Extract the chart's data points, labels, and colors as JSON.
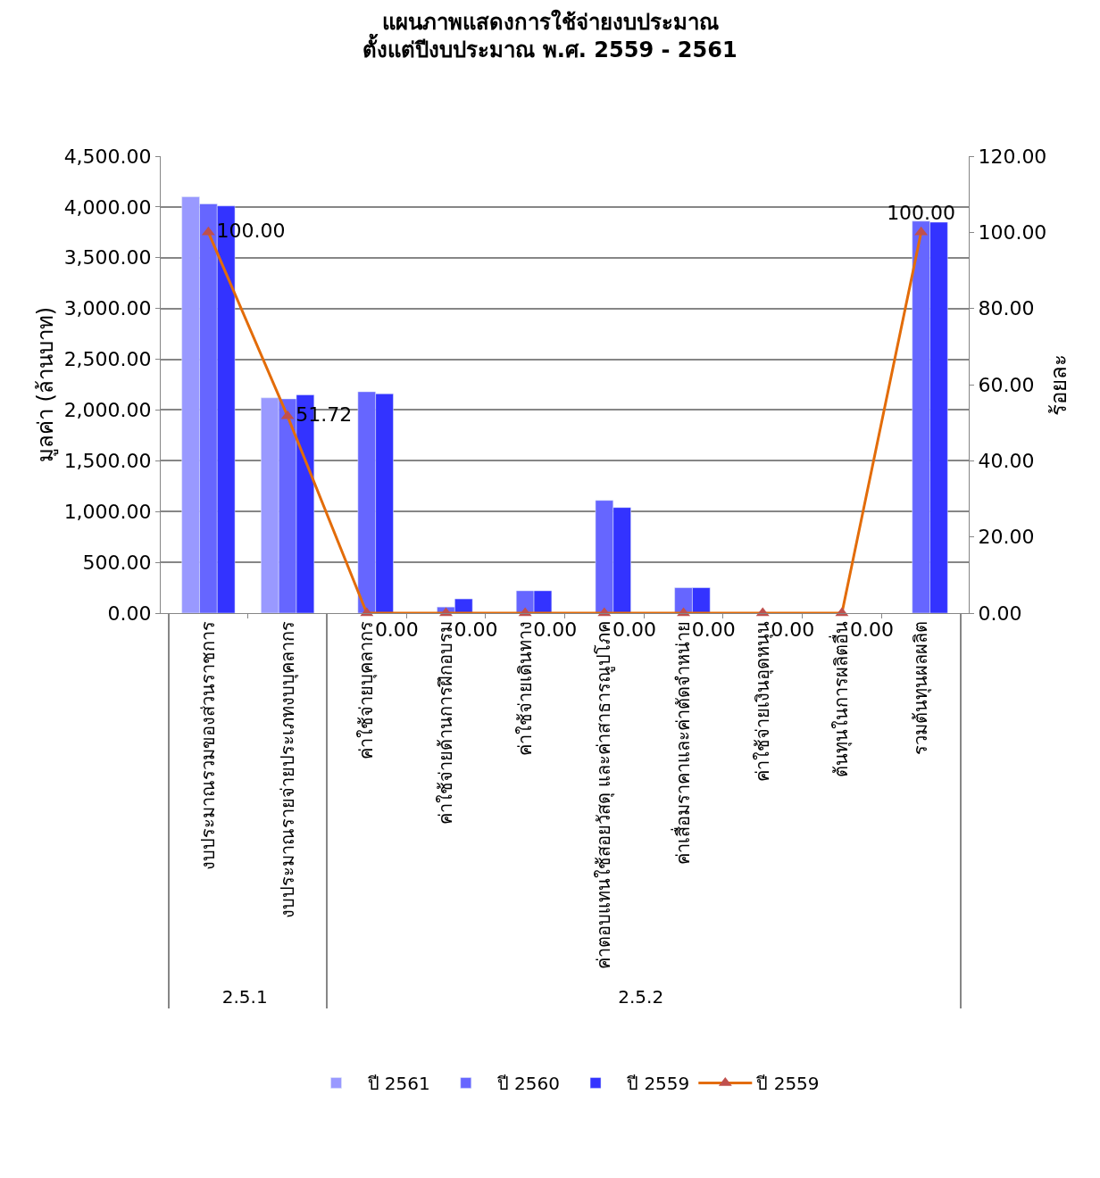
{
  "chart_data": {
    "type": "bar",
    "title": "แผนภาพแสดงการใช้จ่ายงบประมาณ\nตั้งแต่ปีงบประมาณ พ.ศ. 2559 - 2561",
    "ylabel": "มูลค่า (ล้านบาท)",
    "y2label": "ร้อยละ",
    "categories": [
      "งบประมาณรวมของส่วนราชการ",
      "งบประมาณรายจ่ายประเภทงบบุคลากร",
      "ค่าใช้จ่ายบุคลากร",
      "ค่าใช้จ่ายด้านการฝึกอบรม",
      "ค่าใช้จ่ายเดินทาง",
      "ค่าตอบแทนใช้สอยวัสดุ และค่าสาธารณูปโภค",
      "ค่าเสื่อมราคาและค่าตัดจำหน่าย",
      "ค่าใช้จ่ายเงินอุดหนุน",
      "ต้นทุนในการผลิตอื่น",
      "รวมต้นทุนผลผลิต"
    ],
    "annotations": [
      "2.5.1",
      "2.5.2"
    ],
    "series": [
      {
        "name": "ปี 2561",
        "color": "#9999ff",
        "values": [
          4100,
          2120,
          null,
          null,
          null,
          null,
          null,
          null,
          null,
          null
        ]
      },
      {
        "name": "ปี 2560",
        "color": "#6666ff",
        "values": [
          4030,
          2110,
          2180,
          60,
          220,
          1110,
          250,
          null,
          null,
          3860
        ]
      },
      {
        "name": "ปี 2559",
        "color": "#3333ff",
        "values": [
          4010,
          2150,
          2160,
          140,
          220,
          1040,
          250,
          null,
          null,
          3850
        ]
      },
      {
        "name": "ปี 2559",
        "type": "line",
        "axis": "y2",
        "color": "#e36c09",
        "marker": "triangle",
        "values": [
          100,
          51.72,
          0,
          0,
          0,
          0,
          0,
          0,
          0,
          100
        ],
        "value_labels": [
          "100.00",
          "51.72",
          "0.00",
          "0.00",
          "0.00",
          "0.00",
          "0.00",
          "0.00",
          "0.00",
          "100.00"
        ]
      }
    ],
    "ylim": [
      0,
      4500
    ],
    "yticks": [
      {
        "value": 0,
        "label": "0.00"
      },
      {
        "value": 500,
        "label": "500.00"
      },
      {
        "value": 1000,
        "label": "1,000.00"
      },
      {
        "value": 1500,
        "label": "1,500.00"
      },
      {
        "value": 2000,
        "label": "2,000.00"
      },
      {
        "value": 2500,
        "label": "2,500.00"
      },
      {
        "value": 3000,
        "label": "3,000.00"
      },
      {
        "value": 3500,
        "label": "3,500.00"
      },
      {
        "value": 4000,
        "label": "4,000.00"
      },
      {
        "value": 4500,
        "label": "4,500.00"
      }
    ],
    "y2lim": [
      0,
      120
    ],
    "y2ticks": [
      {
        "value": 0,
        "label": "0.00"
      },
      {
        "value": 20,
        "label": "20.00"
      },
      {
        "value": 40,
        "label": "40.00"
      },
      {
        "value": 60,
        "label": "60.00"
      },
      {
        "value": 80,
        "label": "80.00"
      },
      {
        "value": 100,
        "label": "100.00"
      },
      {
        "value": 120,
        "label": "120.00"
      }
    ],
    "grid": "y",
    "legend": "bottom"
  }
}
